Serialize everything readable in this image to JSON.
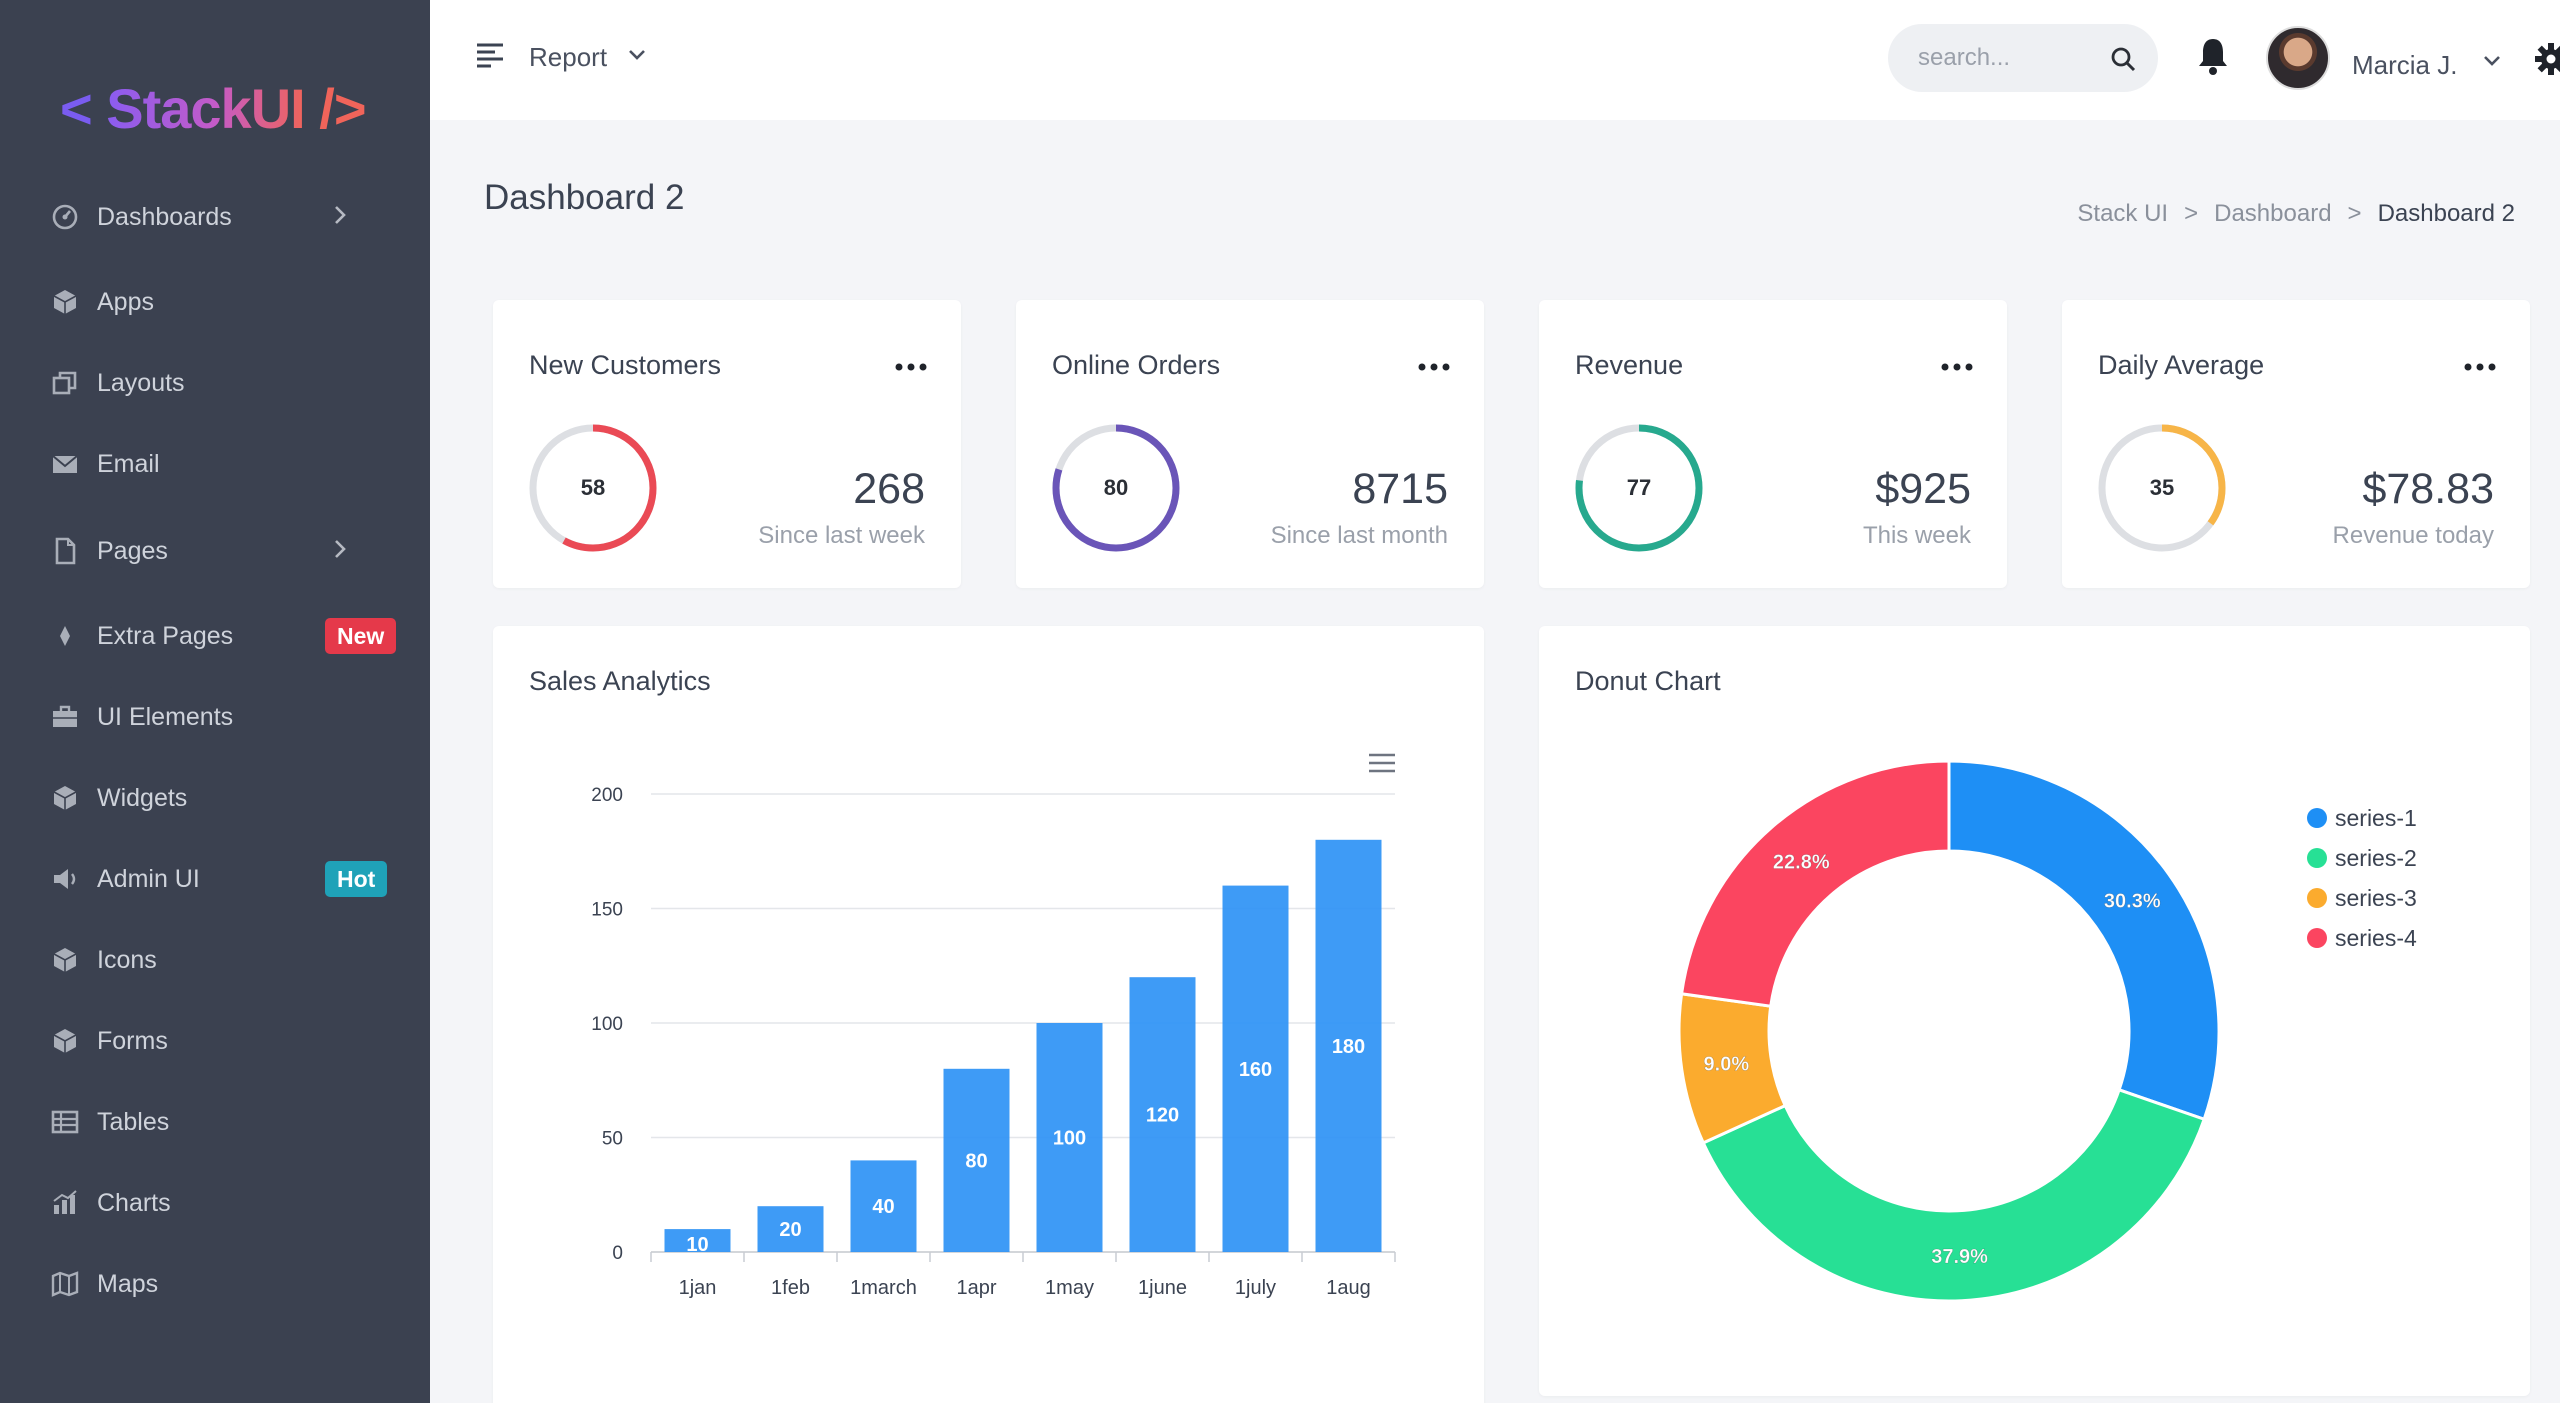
{
  "brand": {
    "logo_left": "<",
    "logo_word": "StackUI",
    "logo_right": "/>"
  },
  "sidebar": {
    "items": [
      {
        "label": "Dashboards",
        "icon": "dashboard-icon",
        "chevron": true
      },
      {
        "label": "Apps",
        "icon": "cube-icon"
      },
      {
        "label": "Layouts",
        "icon": "layers-icon"
      },
      {
        "label": "Email",
        "icon": "email-icon"
      },
      {
        "label": "Pages",
        "icon": "file-icon",
        "chevron": true
      },
      {
        "label": "Extra Pages",
        "icon": "diamond-icon",
        "badge": "New"
      },
      {
        "label": "UI Elements",
        "icon": "briefcase-icon"
      },
      {
        "label": "Widgets",
        "icon": "cube-icon"
      },
      {
        "label": "Admin UI",
        "icon": "megaphone-icon",
        "badge": "Hot"
      },
      {
        "label": "Icons",
        "icon": "cube-icon"
      },
      {
        "label": "Forms",
        "icon": "cube-icon"
      },
      {
        "label": "Tables",
        "icon": "table-icon"
      },
      {
        "label": "Charts",
        "icon": "bar-chart-icon"
      },
      {
        "label": "Maps",
        "icon": "map-icon"
      }
    ]
  },
  "topbar": {
    "report_label": "Report",
    "search_placeholder": "search...",
    "user_name": "Marcia J."
  },
  "page": {
    "title": "Dashboard 2",
    "breadcrumb": [
      "Stack UI",
      ">",
      "Dashboard",
      ">",
      "Dashboard 2"
    ]
  },
  "stats": [
    {
      "title": "New Customers",
      "percent": 58,
      "value": "268",
      "sub": "Since last week",
      "color": "#ea4a55"
    },
    {
      "title": "Online Orders",
      "percent": 80,
      "value": "8715",
      "sub": "Since last month",
      "color": "#6a55b8"
    },
    {
      "title": "Revenue",
      "percent": 77,
      "value": "$925",
      "sub": "This week",
      "color": "#27a98e"
    },
    {
      "title": "Daily Average",
      "percent": 35,
      "value": "$78.83",
      "sub": "Revenue today",
      "color": "#f7b548"
    }
  ],
  "sales": {
    "title": "Sales Analytics"
  },
  "donut": {
    "title": "Donut Chart"
  },
  "chart_data": [
    {
      "type": "bar",
      "title": "Sales Analytics",
      "categories": [
        "1jan",
        "1feb",
        "1march",
        "1apr",
        "1may",
        "1june",
        "1july",
        "1aug"
      ],
      "values": [
        10,
        20,
        40,
        80,
        100,
        120,
        160,
        180
      ],
      "ylim": [
        0,
        200
      ],
      "yticks": [
        0,
        50,
        100,
        150,
        200
      ],
      "grid": true,
      "color": "#2e93f5"
    },
    {
      "type": "pie",
      "title": "Donut Chart",
      "donut": true,
      "labels": [
        "series-1",
        "series-2",
        "series-3",
        "series-4"
      ],
      "values": [
        30.3,
        37.9,
        9.0,
        22.8
      ],
      "percent_labels": [
        "30.3%",
        "37.9%",
        "9.0%",
        "22.8%"
      ],
      "colors": [
        "#1e8ff5",
        "#27e095",
        "#fbab2e",
        "#fb4560"
      ],
      "legend": "right"
    }
  ]
}
